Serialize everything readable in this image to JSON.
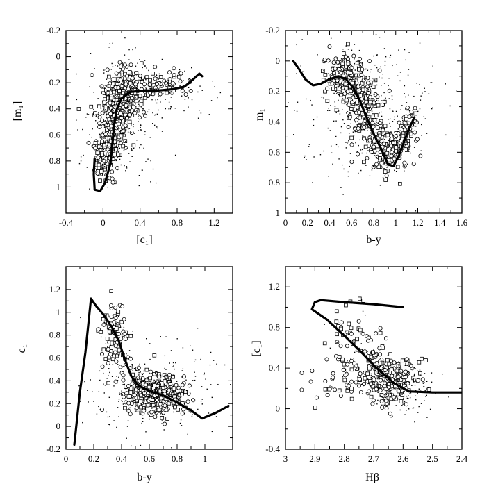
{
  "chart_data": [
    {
      "type": "scatter",
      "xlabel": "[c₁]",
      "ylabel": "[m₁]",
      "xlim": [
        -0.4,
        1.4
      ],
      "ylim": [
        -0.2,
        1.2
      ],
      "y_inverted": true,
      "xticks": [
        "-0.4",
        "0",
        "0.4",
        "0.8",
        "1.2"
      ],
      "xtick_values": [
        -0.4,
        0,
        0.4,
        0.8,
        1.2
      ],
      "yticks": [
        "-0.2",
        "0",
        "0.2",
        "0.4",
        "0.6",
        "0.8",
        "1"
      ],
      "ytick_values": [
        -0.2,
        0,
        0.2,
        0.4,
        0.6,
        0.8,
        1
      ],
      "model_curve": [
        [
          -0.09,
          0.78
        ],
        [
          -0.1,
          0.9
        ],
        [
          -0.09,
          1.02
        ],
        [
          -0.03,
          1.03
        ],
        [
          0.02,
          0.97
        ],
        [
          0.08,
          0.82
        ],
        [
          0.1,
          0.68
        ],
        [
          0.12,
          0.52
        ],
        [
          0.15,
          0.4
        ],
        [
          0.2,
          0.32
        ],
        [
          0.3,
          0.27
        ],
        [
          0.45,
          0.26
        ],
        [
          0.6,
          0.26
        ],
        [
          0.75,
          0.25
        ],
        [
          0.88,
          0.23
        ],
        [
          0.98,
          0.17
        ],
        [
          1.04,
          0.13
        ],
        [
          1.07,
          0.15
        ]
      ],
      "cloud": [
        {
          "cx": 0.22,
          "cy": 0.28,
          "sx": 0.1,
          "sy": 0.09,
          "n": 260,
          "kind": "mix"
        },
        {
          "cx": 0.1,
          "cy": 0.52,
          "sx": 0.09,
          "sy": 0.14,
          "n": 220,
          "kind": "mix"
        },
        {
          "cx": 0.0,
          "cy": 0.78,
          "sx": 0.06,
          "sy": 0.1,
          "n": 90,
          "kind": "mix"
        },
        {
          "cx": 0.62,
          "cy": 0.22,
          "sx": 0.18,
          "sy": 0.05,
          "n": 90,
          "kind": "mix"
        },
        {
          "cx": 0.2,
          "cy": 0.45,
          "sx": 0.22,
          "sy": 0.25,
          "n": 260,
          "kind": "dot"
        },
        {
          "cx": 0.7,
          "cy": 0.28,
          "sx": 0.28,
          "sy": 0.12,
          "n": 80,
          "kind": "dot"
        }
      ]
    },
    {
      "type": "scatter",
      "xlabel": "b-y",
      "ylabel": "m₁",
      "xlim": [
        0,
        1.6
      ],
      "ylim": [
        -0.2,
        1
      ],
      "y_inverted": true,
      "xticks": [
        "0",
        "0.2",
        "0.4",
        "0.6",
        "0.8",
        "1",
        "1.2",
        "1.4",
        "1.6"
      ],
      "xtick_values": [
        0,
        0.2,
        0.4,
        0.6,
        0.8,
        1,
        1.2,
        1.4,
        1.6
      ],
      "yticks": [
        "-0.2",
        "0",
        "0.2",
        "0.4",
        "0.6",
        "0.8",
        "1"
      ],
      "ytick_values": [
        -0.2,
        0,
        0.2,
        0.4,
        0.6,
        0.8,
        1
      ],
      "model_curve": [
        [
          0.07,
          0.0
        ],
        [
          0.12,
          0.05
        ],
        [
          0.18,
          0.12
        ],
        [
          0.25,
          0.16
        ],
        [
          0.32,
          0.15
        ],
        [
          0.4,
          0.12
        ],
        [
          0.48,
          0.1
        ],
        [
          0.55,
          0.12
        ],
        [
          0.62,
          0.18
        ],
        [
          0.68,
          0.27
        ],
        [
          0.74,
          0.38
        ],
        [
          0.8,
          0.48
        ],
        [
          0.87,
          0.58
        ],
        [
          0.93,
          0.68
        ],
        [
          0.98,
          0.69
        ],
        [
          1.03,
          0.62
        ],
        [
          1.08,
          0.52
        ],
        [
          1.13,
          0.43
        ],
        [
          1.17,
          0.37
        ]
      ],
      "cloud": [
        {
          "cx": 0.55,
          "cy": 0.12,
          "sx": 0.08,
          "sy": 0.09,
          "n": 200,
          "kind": "mix"
        },
        {
          "cx": 0.72,
          "cy": 0.32,
          "sx": 0.08,
          "sy": 0.12,
          "n": 200,
          "kind": "mix"
        },
        {
          "cx": 0.95,
          "cy": 0.58,
          "sx": 0.09,
          "sy": 0.08,
          "n": 160,
          "kind": "mix"
        },
        {
          "cx": 1.1,
          "cy": 0.45,
          "sx": 0.05,
          "sy": 0.1,
          "n": 60,
          "kind": "mix"
        },
        {
          "cx": 0.7,
          "cy": 0.3,
          "sx": 0.3,
          "sy": 0.25,
          "n": 320,
          "kind": "dot"
        }
      ]
    },
    {
      "type": "scatter",
      "xlabel": "b-y",
      "ylabel": "c₁",
      "xlim": [
        0,
        1.2
      ],
      "ylim": [
        -0.2,
        1.4
      ],
      "y_inverted": false,
      "xticks": [
        "0",
        "0.2",
        "0.4",
        "0.6",
        "0.8",
        "1"
      ],
      "xtick_values": [
        0,
        0.2,
        0.4,
        0.6,
        0.8,
        1
      ],
      "yticks": [
        "-0.2",
        "0",
        "0.2",
        "0.4",
        "0.6",
        "0.8",
        "1",
        "1.2"
      ],
      "ytick_values": [
        -0.2,
        0,
        0.2,
        0.4,
        0.6,
        0.8,
        1,
        1.2
      ],
      "model_curve": [
        [
          0.06,
          -0.16
        ],
        [
          0.1,
          0.3
        ],
        [
          0.14,
          0.65
        ],
        [
          0.18,
          1.12
        ],
        [
          0.22,
          1.05
        ],
        [
          0.27,
          0.98
        ],
        [
          0.33,
          0.87
        ],
        [
          0.38,
          0.75
        ],
        [
          0.42,
          0.6
        ],
        [
          0.47,
          0.44
        ],
        [
          0.52,
          0.36
        ],
        [
          0.6,
          0.31
        ],
        [
          0.7,
          0.27
        ],
        [
          0.8,
          0.21
        ],
        [
          0.9,
          0.14
        ],
        [
          0.98,
          0.07
        ],
        [
          1.08,
          0.12
        ],
        [
          1.17,
          0.18
        ]
      ],
      "cloud": [
        {
          "cx": 0.6,
          "cy": 0.3,
          "sx": 0.1,
          "sy": 0.09,
          "n": 300,
          "kind": "mix"
        },
        {
          "cx": 0.35,
          "cy": 0.8,
          "sx": 0.05,
          "sy": 0.15,
          "n": 110,
          "kind": "mix"
        },
        {
          "cx": 0.75,
          "cy": 0.25,
          "sx": 0.08,
          "sy": 0.07,
          "n": 120,
          "kind": "mix"
        },
        {
          "cx": 0.62,
          "cy": 0.32,
          "sx": 0.22,
          "sy": 0.2,
          "n": 260,
          "kind": "dot"
        }
      ]
    },
    {
      "type": "scatter",
      "xlabel": "Hβ",
      "ylabel": "[c₁]",
      "xlim": [
        3,
        2.4
      ],
      "ylim": [
        -0.4,
        1.4
      ],
      "y_inverted": false,
      "xticks": [
        "3",
        "2.9",
        "2.8",
        "2.7",
        "2.6",
        "2.5",
        "2.4"
      ],
      "xtick_values": [
        3,
        2.9,
        2.8,
        2.7,
        2.6,
        2.5,
        2.4
      ],
      "yticks": [
        "-0.4",
        "0",
        "0.4",
        "0.8",
        "1.2"
      ],
      "ytick_values": [
        -0.4,
        0,
        0.4,
        0.8,
        1.2
      ],
      "model_curve": [
        [
          2.6,
          1.0
        ],
        [
          2.7,
          1.03
        ],
        [
          2.8,
          1.05
        ],
        [
          2.88,
          1.07
        ],
        [
          2.9,
          1.05
        ],
        [
          2.91,
          0.98
        ],
        [
          2.9,
          0.96
        ],
        [
          2.86,
          0.88
        ],
        [
          2.8,
          0.72
        ],
        [
          2.74,
          0.55
        ],
        [
          2.69,
          0.4
        ],
        [
          2.63,
          0.25
        ],
        [
          2.58,
          0.17
        ],
        [
          2.5,
          0.16
        ],
        [
          2.4,
          0.16
        ]
      ],
      "cloud": [
        {
          "cx": 2.65,
          "cy": 0.3,
          "sx": 0.05,
          "sy": 0.12,
          "n": 260,
          "kind": "mix"
        },
        {
          "cx": 2.76,
          "cy": 0.62,
          "sx": 0.05,
          "sy": 0.18,
          "n": 90,
          "kind": "mix"
        },
        {
          "cx": 2.82,
          "cy": 0.25,
          "sx": 0.07,
          "sy": 0.12,
          "n": 40,
          "kind": "mix"
        },
        {
          "cx": 2.6,
          "cy": 0.2,
          "sx": 0.06,
          "sy": 0.12,
          "n": 120,
          "kind": "dot"
        }
      ]
    }
  ]
}
